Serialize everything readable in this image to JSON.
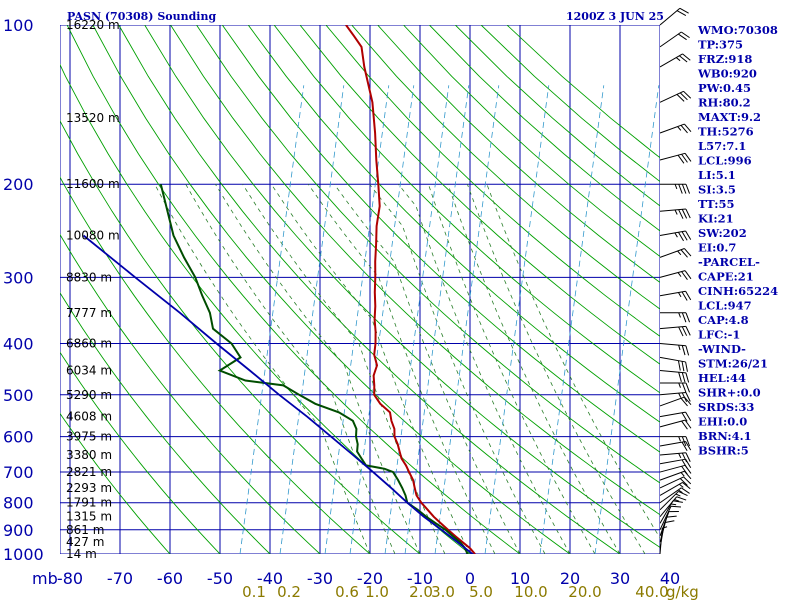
{
  "header": {
    "title": "PASN (70308) Sounding",
    "datetime": "1200Z  3 JUN 25"
  },
  "axis": {
    "pressure_unit": "mb",
    "mixing_unit": "g/kg",
    "pressure_ticks": [
      100,
      200,
      300,
      400,
      500,
      600,
      700,
      800,
      900,
      1000
    ],
    "temp_ticks": [
      -80,
      -70,
      -60,
      -50,
      -40,
      -30,
      -20,
      -10,
      0,
      10,
      20,
      30,
      40
    ],
    "mixing_labels": [
      "0.1",
      "0.2",
      "0.6",
      "1.0",
      "2.0",
      "3.0",
      "5.0",
      "10.0",
      "20.0",
      "40.0"
    ]
  },
  "height_labels": [
    {
      "p": 100,
      "text": "16220 m"
    },
    {
      "p": 150,
      "text": "13520 m"
    },
    {
      "p": 200,
      "text": "11600 m"
    },
    {
      "p": 250,
      "text": "10080 m"
    },
    {
      "p": 300,
      "text": "8830 m"
    },
    {
      "p": 350,
      "text": "7777 m"
    },
    {
      "p": 400,
      "text": "6860 m"
    },
    {
      "p": 450,
      "text": "6034 m"
    },
    {
      "p": 500,
      "text": "5290 m"
    },
    {
      "p": 550,
      "text": "4608 m"
    },
    {
      "p": 600,
      "text": "3975 m"
    },
    {
      "p": 650,
      "text": "3380 m"
    },
    {
      "p": 700,
      "text": "2821 m"
    },
    {
      "p": 750,
      "text": "2293 m"
    },
    {
      "p": 800,
      "text": "1791 m"
    },
    {
      "p": 850,
      "text": "1315 m"
    },
    {
      "p": 900,
      "text": "861 m"
    },
    {
      "p": 950,
      "text": "427 m"
    },
    {
      "p": 1000,
      "text": "14 m"
    }
  ],
  "indices": [
    "WMO:70308",
    "TP:375",
    "FRZ:918",
    "WB0:920",
    "PW:0.45",
    "RH:80.2",
    "MAXT:9.2",
    "TH:5276",
    "L57:7.1",
    "LCL:996",
    "LI:5.1",
    "SI:3.5",
    "TT:55",
    "KI:21",
    "SW:202",
    "EI:0.7",
    "-PARCEL-",
    "CAPE:21",
    "CINH:65224",
    "LCL:947",
    "CAP:4.8",
    "LFC:-1",
    "-WIND-",
    "STM:26/21",
    "HEL:44",
    "SHR+:0.0",
    "SRDS:33",
    "EHI:0.0",
    "BRN:4.1",
    "BSHR:5"
  ],
  "colors": {
    "isobar": "#0000aa",
    "isotherm": "#0000aa",
    "dry_adiabat": "#00a000",
    "moist_adiabat": "#2a7f2a",
    "mixing_ratio": "#3399cc",
    "temperature": "#b00000",
    "dewpoint": "#004d00",
    "parcel": "#0000aa",
    "wind": "#000000"
  },
  "chart_data": {
    "type": "skew-t",
    "title": "PASN (70308) Sounding",
    "xlabel": "",
    "ylabel": "mb",
    "pressure_range": [
      1000,
      100
    ],
    "temp_range": [
      -80,
      40
    ],
    "series": [
      {
        "points": [
          [
            1000,
            1.0
          ],
          [
            975,
            -0.5
          ],
          [
            950,
            -2.5
          ],
          [
            925,
            -4.5
          ],
          [
            900,
            -6.5
          ],
          [
            875,
            -8.5
          ],
          [
            850,
            -10.5
          ],
          [
            825,
            -12.3
          ],
          [
            800,
            -14.2
          ],
          [
            775,
            -15.8
          ],
          [
            750,
            -16.8
          ],
          [
            725,
            -17.8
          ],
          [
            700,
            -19.3
          ],
          [
            680,
            -20.5
          ],
          [
            660,
            -22
          ],
          [
            640,
            -23
          ],
          [
            620,
            -24
          ],
          [
            600,
            -25.3
          ],
          [
            580,
            -26
          ],
          [
            560,
            -27.3
          ],
          [
            540,
            -28.3
          ],
          [
            520,
            -31
          ],
          [
            500,
            -33
          ],
          [
            480,
            -33.8
          ],
          [
            460,
            -34.8
          ],
          [
            440,
            -35
          ],
          [
            420,
            -36.5
          ],
          [
            400,
            -37.2
          ],
          [
            380,
            -38.2
          ],
          [
            360,
            -39.5
          ],
          [
            340,
            -40.5
          ],
          [
            320,
            -41.8
          ],
          [
            300,
            -43
          ],
          [
            280,
            -44.4
          ],
          [
            260,
            -45.7
          ],
          [
            240,
            -47.2
          ],
          [
            220,
            -48.3
          ],
          [
            200,
            -50.5
          ],
          [
            180,
            -53
          ],
          [
            160,
            -55.6
          ],
          [
            140,
            -58.8
          ],
          [
            120,
            -63.5
          ],
          [
            110,
            -65.8
          ],
          [
            105,
            -68.2
          ],
          [
            100,
            -70.8
          ]
        ]
      },
      {
        "points": [
          [
            1000,
            -0.5
          ],
          [
            975,
            -1.5
          ],
          [
            950,
            -3
          ],
          [
            925,
            -5
          ],
          [
            900,
            -7
          ],
          [
            875,
            -9.5
          ],
          [
            850,
            -12
          ],
          [
            825,
            -14.3
          ],
          [
            800,
            -17
          ],
          [
            775,
            -18
          ],
          [
            750,
            -19.3
          ],
          [
            725,
            -20.8
          ],
          [
            700,
            -22.5
          ],
          [
            690,
            -24.5
          ],
          [
            680,
            -28.5
          ],
          [
            660,
            -30
          ],
          [
            640,
            -31.5
          ],
          [
            620,
            -32
          ],
          [
            600,
            -33
          ],
          [
            580,
            -33.6
          ],
          [
            560,
            -35
          ],
          [
            540,
            -38.5
          ],
          [
            520,
            -44
          ],
          [
            500,
            -48
          ],
          [
            480,
            -52
          ],
          [
            470,
            -60
          ],
          [
            450,
            -66
          ],
          [
            425,
            -63
          ],
          [
            400,
            -66
          ],
          [
            375,
            -71
          ],
          [
            350,
            -73
          ],
          [
            325,
            -76
          ],
          [
            300,
            -79
          ],
          [
            275,
            -83
          ],
          [
            250,
            -87
          ],
          [
            200,
            -94
          ]
        ]
      },
      {
        "points": [
          [
            1020,
            2.5
          ],
          [
            1000,
            0.5
          ],
          [
            950,
            -3.5
          ],
          [
            900,
            -7.8
          ],
          [
            850,
            -12.5
          ],
          [
            800,
            -17
          ],
          [
            750,
            -21.5
          ],
          [
            700,
            -26.5
          ],
          [
            650,
            -32
          ],
          [
            600,
            -38
          ],
          [
            550,
            -44.5
          ],
          [
            500,
            -52
          ],
          [
            450,
            -60
          ],
          [
            400,
            -69
          ],
          [
            350,
            -79
          ],
          [
            300,
            -91
          ],
          [
            250,
            -105
          ]
        ]
      }
    ],
    "winds": [
      [
        1000,
        5,
        8
      ],
      [
        975,
        10,
        12
      ],
      [
        950,
        15,
        12
      ],
      [
        925,
        20,
        14
      ],
      [
        900,
        25,
        14
      ],
      [
        875,
        30,
        15
      ],
      [
        850,
        40,
        16
      ],
      [
        825,
        45,
        15
      ],
      [
        800,
        55,
        18
      ],
      [
        775,
        60,
        16
      ],
      [
        750,
        65,
        20
      ],
      [
        725,
        70,
        18
      ],
      [
        700,
        75,
        22
      ],
      [
        675,
        80,
        22
      ],
      [
        650,
        85,
        25
      ],
      [
        625,
        80,
        22
      ],
      [
        600,
        90,
        25
      ],
      [
        575,
        75,
        20
      ],
      [
        550,
        80,
        22
      ],
      [
        525,
        70,
        20
      ],
      [
        500,
        85,
        25
      ],
      [
        475,
        90,
        28
      ],
      [
        450,
        95,
        30
      ],
      [
        425,
        100,
        30
      ],
      [
        400,
        95,
        28
      ],
      [
        375,
        85,
        30
      ],
      [
        350,
        90,
        28
      ],
      [
        325,
        80,
        25
      ],
      [
        300,
        75,
        28
      ],
      [
        275,
        70,
        25
      ],
      [
        250,
        80,
        35
      ],
      [
        225,
        85,
        38
      ],
      [
        200,
        90,
        35
      ],
      [
        180,
        75,
        30
      ],
      [
        160,
        70,
        28
      ],
      [
        140,
        65,
        30
      ],
      [
        120,
        60,
        25
      ],
      [
        110,
        55,
        22
      ],
      [
        100,
        50,
        20
      ]
    ]
  }
}
